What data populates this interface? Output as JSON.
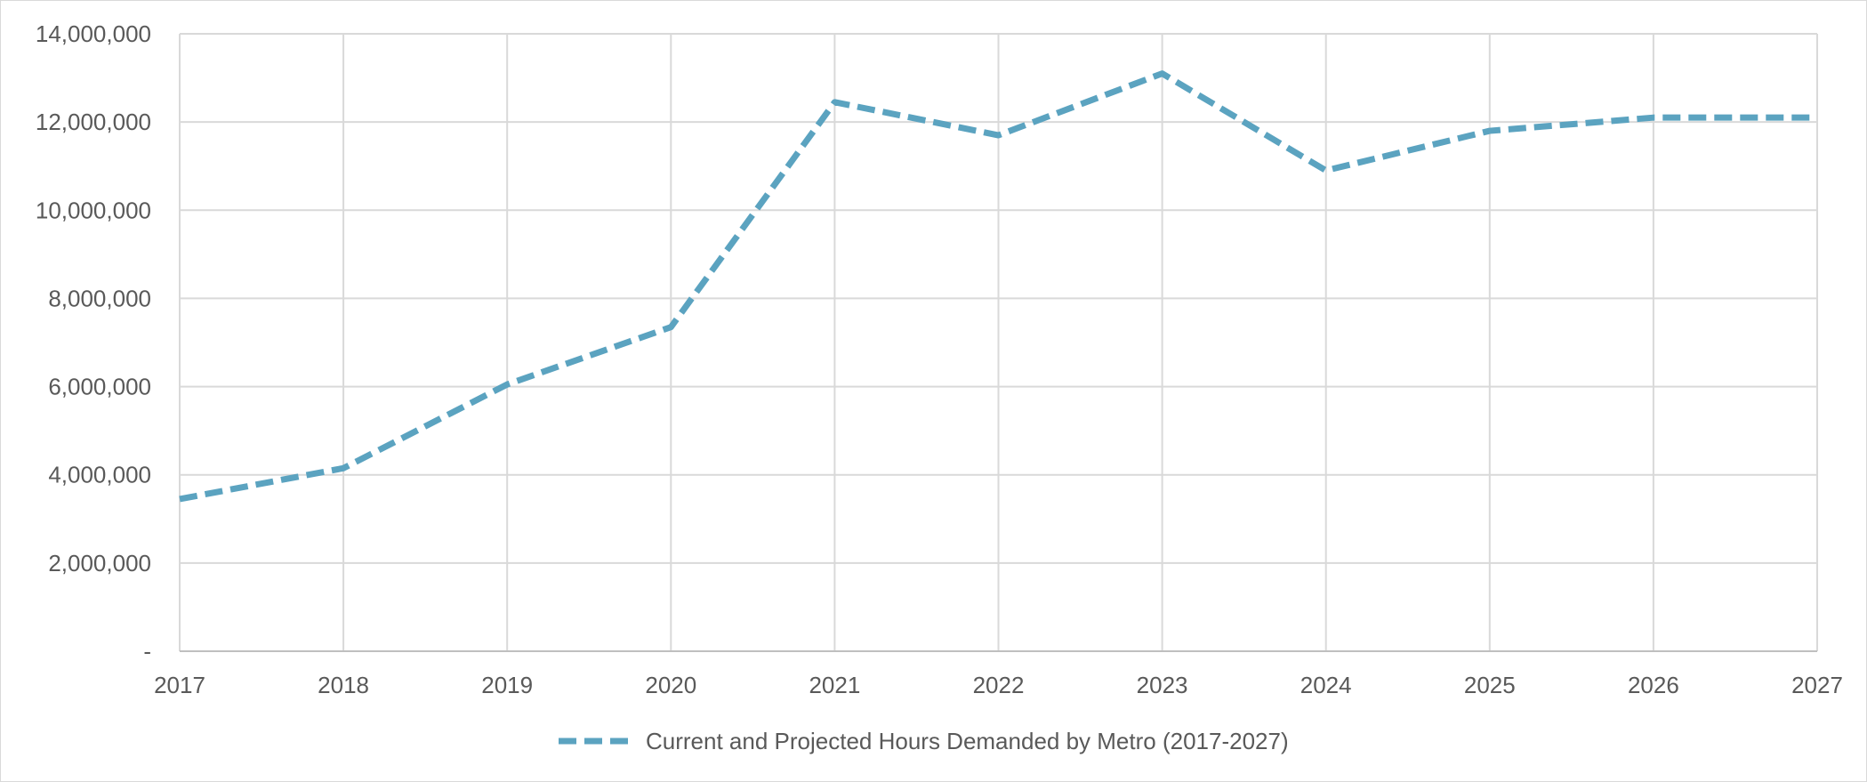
{
  "chart_data": {
    "type": "line",
    "title": "",
    "xlabel": "",
    "ylabel": "",
    "x": [
      "2017",
      "2018",
      "2019",
      "2020",
      "2021",
      "2022",
      "2023",
      "2024",
      "2025",
      "2026",
      "2027"
    ],
    "y_tick_labels": [
      "-",
      "2,000,000",
      "4,000,000",
      "6,000,000",
      "8,000,000",
      "10,000,000",
      "12,000,000",
      "14,000,000"
    ],
    "ylim": [
      0,
      14000000
    ],
    "y_tick_step": 2000000,
    "grid": true,
    "legend_position": "bottom",
    "series": [
      {
        "name": "Current and Projected Hours Demanded by Metro (2017-2027)",
        "color": "#5ba3c0",
        "line_style": "dashed",
        "values": [
          3450000,
          4150000,
          6050000,
          7350000,
          12450000,
          11700000,
          13100000,
          10900000,
          11800000,
          12100000,
          12100000
        ]
      }
    ]
  },
  "colors": {
    "gridline": "#d9d9d9",
    "axis": "#bfbfbf",
    "text": "#595959"
  }
}
